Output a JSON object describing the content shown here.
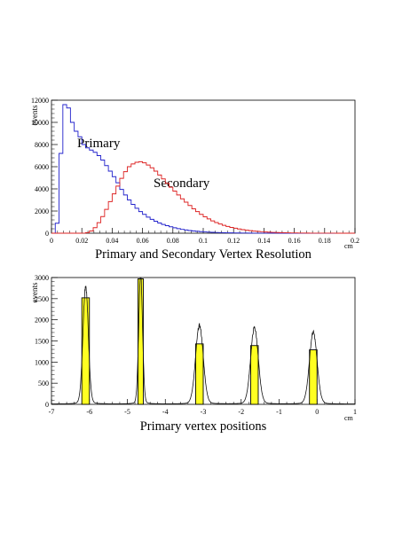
{
  "chart_data": [
    {
      "type": "histogram",
      "title": "Primary and Secondary Vertex Resolution",
      "xlabel": "cm",
      "ylabel": "events",
      "xlim": [
        0,
        0.2
      ],
      "ylim": [
        0,
        12000
      ],
      "x_ticks": [
        "0",
        "0.02",
        "0.04",
        "0.06",
        "0.08",
        "0.1",
        "0.12",
        "0.14",
        "0.16",
        "0.18",
        "0.2"
      ],
      "y_ticks": [
        "0",
        "2000",
        "4000",
        "6000",
        "8000",
        "10000",
        "12000"
      ],
      "grid": false,
      "series": [
        {
          "name": "Primary",
          "color": "#2222cc",
          "bin_width": 0.0025,
          "x_start": 0,
          "values": [
            0,
            900,
            7200,
            11600,
            11300,
            10000,
            9200,
            8700,
            8000,
            7700,
            7500,
            7300,
            7000,
            6600,
            6100,
            5600,
            5100,
            4550,
            3950,
            3450,
            3000,
            2600,
            2250,
            1950,
            1700,
            1450,
            1250,
            1080,
            920,
            790,
            680,
            580,
            490,
            410,
            345,
            290,
            240,
            200,
            170,
            140,
            115,
            95,
            80,
            65,
            55,
            45,
            37,
            30,
            25,
            20,
            16,
            13,
            10,
            8,
            6,
            5,
            4,
            3,
            2,
            2,
            1,
            1,
            1,
            0,
            0,
            0,
            0,
            0,
            0,
            0,
            0,
            0,
            0,
            0,
            0,
            0,
            0,
            0,
            0,
            0
          ]
        },
        {
          "name": "Secondary",
          "color": "#dd2222",
          "bin_width": 0.0025,
          "x_start": 0,
          "values": [
            0,
            0,
            0,
            0,
            0,
            0,
            0,
            0,
            5,
            50,
            200,
            500,
            950,
            1500,
            2150,
            2850,
            3550,
            4250,
            4950,
            5550,
            6000,
            6250,
            6400,
            6450,
            6350,
            6150,
            5900,
            5600,
            5250,
            4900,
            4500,
            4150,
            3800,
            3450,
            3100,
            2800,
            2500,
            2200,
            1950,
            1700,
            1480,
            1290,
            1110,
            960,
            830,
            710,
            610,
            520,
            450,
            380,
            320,
            270,
            230,
            190,
            160,
            135,
            110,
            90,
            75,
            60,
            50,
            42,
            35,
            28,
            22,
            18,
            14,
            11,
            9,
            7,
            5,
            4,
            3,
            2,
            2,
            1,
            1,
            0,
            0,
            0
          ]
        }
      ],
      "annotations": [
        "Primary",
        "Secondary"
      ]
    },
    {
      "type": "histogram",
      "title": "Primary vertex positions",
      "xlabel": "cm",
      "ylabel": "events",
      "xlim": [
        -7,
        1
      ],
      "ylim": [
        0,
        3000
      ],
      "x_ticks": [
        "-7",
        "-6",
        "-5",
        "-4",
        "-3",
        "-2",
        "-1",
        "0",
        "1"
      ],
      "y_ticks": [
        "0",
        "500",
        "1000",
        "1500",
        "2000",
        "2500",
        "3000"
      ],
      "grid": false,
      "fill_color": "#ffff22",
      "bars": [
        {
          "x": -6.1,
          "width": 0.2,
          "value": 2520
        },
        {
          "x": -4.65,
          "width": 0.14,
          "value": 2970
        },
        {
          "x": -3.1,
          "width": 0.2,
          "value": 1430
        },
        {
          "x": -1.65,
          "width": 0.2,
          "value": 1390
        },
        {
          "x": -0.1,
          "width": 0.2,
          "value": 1290
        }
      ],
      "peaks": [
        {
          "center": -6.1,
          "height": 2650,
          "sigma": 0.07
        },
        {
          "center": -4.65,
          "height": 2900,
          "sigma": 0.05
        },
        {
          "center": -3.1,
          "height": 1750,
          "sigma": 0.1
        },
        {
          "center": -1.65,
          "height": 1700,
          "sigma": 0.1
        },
        {
          "center": -0.1,
          "height": 1600,
          "sigma": 0.1
        }
      ]
    }
  ]
}
